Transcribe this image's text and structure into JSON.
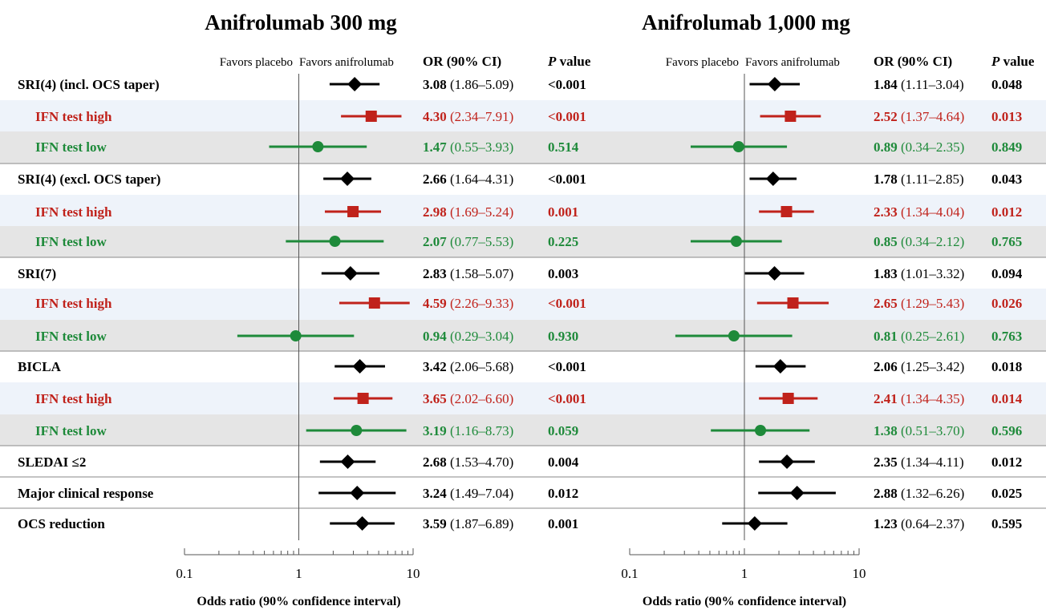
{
  "colors": {
    "main": "#000000",
    "high": "#c0221b",
    "low": "#1e8a3a",
    "band_high": "#eef3fa",
    "band_low": "#e5e5e5"
  },
  "headers": {
    "or_ci": "OR (90% CI)",
    "p_italic": "P",
    "p_rest": " value",
    "favors_placebo": "Favors placebo",
    "favors_anifrolumab": "Favors anifrolumab"
  },
  "chart_data": {
    "type": "forest",
    "scale": "log",
    "xlim": [
      0.1,
      10
    ],
    "xticks": [
      "0.1",
      "1",
      "10"
    ],
    "rows": [
      {
        "label": "SRI(4) (incl. OCS taper)",
        "kind": "main"
      },
      {
        "label": "IFN test high",
        "kind": "high"
      },
      {
        "label": "IFN test low",
        "kind": "low"
      },
      {
        "label": "SRI(4) (excl. OCS taper)",
        "kind": "main"
      },
      {
        "label": "IFN test high",
        "kind": "high"
      },
      {
        "label": "IFN test low",
        "kind": "low"
      },
      {
        "label": "SRI(7)",
        "kind": "main"
      },
      {
        "label": "IFN test high",
        "kind": "high"
      },
      {
        "label": "IFN test low",
        "kind": "low"
      },
      {
        "label": "BICLA",
        "kind": "main"
      },
      {
        "label": "IFN test high",
        "kind": "high"
      },
      {
        "label": "IFN test low",
        "kind": "low"
      },
      {
        "label": "SLEDAI ≤2",
        "kind": "main"
      },
      {
        "label": "Major clinical response",
        "kind": "main"
      },
      {
        "label": "OCS reduction",
        "kind": "main"
      }
    ],
    "panels": [
      {
        "title": "Anifrolumab 300 mg",
        "xlabel": "Odds ratio (90% confidence interval)",
        "data": [
          {
            "or": 3.08,
            "lo": 1.86,
            "hi": 5.09,
            "or_text": "3.08",
            "ci_text": "(1.86–5.09)",
            "p": "<0.001"
          },
          {
            "or": 4.3,
            "lo": 2.34,
            "hi": 7.91,
            "or_text": "4.30",
            "ci_text": "(2.34–7.91)",
            "p": "<0.001"
          },
          {
            "or": 1.47,
            "lo": 0.55,
            "hi": 3.93,
            "or_text": "1.47",
            "ci_text": "(0.55–3.93)",
            "p": "0.514"
          },
          {
            "or": 2.66,
            "lo": 1.64,
            "hi": 4.31,
            "or_text": "2.66",
            "ci_text": "(1.64–4.31)",
            "p": "<0.001"
          },
          {
            "or": 2.98,
            "lo": 1.69,
            "hi": 5.24,
            "or_text": "2.98",
            "ci_text": "(1.69–5.24)",
            "p": "0.001"
          },
          {
            "or": 2.07,
            "lo": 0.77,
            "hi": 5.53,
            "or_text": "2.07",
            "ci_text": "(0.77–5.53)",
            "p": "0.225"
          },
          {
            "or": 2.83,
            "lo": 1.58,
            "hi": 5.07,
            "or_text": "2.83",
            "ci_text": "(1.58–5.07)",
            "p": "0.003"
          },
          {
            "or": 4.59,
            "lo": 2.26,
            "hi": 9.33,
            "or_text": "4.59",
            "ci_text": "(2.26–9.33)",
            "p": "<0.001"
          },
          {
            "or": 0.94,
            "lo": 0.29,
            "hi": 3.04,
            "or_text": "0.94",
            "ci_text": "(0.29–3.04)",
            "p": "0.930"
          },
          {
            "or": 3.42,
            "lo": 2.06,
            "hi": 5.68,
            "or_text": "3.42",
            "ci_text": "(2.06–5.68)",
            "p": "<0.001"
          },
          {
            "or": 3.65,
            "lo": 2.02,
            "hi": 6.6,
            "or_text": "3.65",
            "ci_text": "(2.02–6.60)",
            "p": "<0.001"
          },
          {
            "or": 3.19,
            "lo": 1.16,
            "hi": 8.73,
            "or_text": "3.19",
            "ci_text": "(1.16–8.73)",
            "p": "0.059"
          },
          {
            "or": 2.68,
            "lo": 1.53,
            "hi": 4.7,
            "or_text": "2.68",
            "ci_text": "(1.53–4.70)",
            "p": "0.004"
          },
          {
            "or": 3.24,
            "lo": 1.49,
            "hi": 7.04,
            "or_text": "3.24",
            "ci_text": "(1.49–7.04)",
            "p": "0.012"
          },
          {
            "or": 3.59,
            "lo": 1.87,
            "hi": 6.89,
            "or_text": "3.59",
            "ci_text": "(1.87–6.89)",
            "p": "0.001"
          }
        ]
      },
      {
        "title": "Anifrolumab 1,000 mg",
        "xlabel": "Odds ratio (90% confidence interval)",
        "data": [
          {
            "or": 1.84,
            "lo": 1.11,
            "hi": 3.04,
            "or_text": "1.84",
            "ci_text": "(1.11–3.04)",
            "p": "0.048"
          },
          {
            "or": 2.52,
            "lo": 1.37,
            "hi": 4.64,
            "or_text": "2.52",
            "ci_text": "(1.37–4.64)",
            "p": "0.013"
          },
          {
            "or": 0.89,
            "lo": 0.34,
            "hi": 2.35,
            "or_text": "0.89",
            "ci_text": "(0.34–2.35)",
            "p": "0.849"
          },
          {
            "or": 1.78,
            "lo": 1.11,
            "hi": 2.85,
            "or_text": "1.78",
            "ci_text": "(1.11–2.85)",
            "p": "0.043"
          },
          {
            "or": 2.33,
            "lo": 1.34,
            "hi": 4.04,
            "or_text": "2.33",
            "ci_text": "(1.34–4.04)",
            "p": "0.012"
          },
          {
            "or": 0.85,
            "lo": 0.34,
            "hi": 2.12,
            "or_text": "0.85",
            "ci_text": "(0.34–2.12)",
            "p": "0.765"
          },
          {
            "or": 1.83,
            "lo": 1.01,
            "hi": 3.32,
            "or_text": "1.83",
            "ci_text": "(1.01–3.32)",
            "p": "0.094"
          },
          {
            "or": 2.65,
            "lo": 1.29,
            "hi": 5.43,
            "or_text": "2.65",
            "ci_text": "(1.29–5.43)",
            "p": "0.026"
          },
          {
            "or": 0.81,
            "lo": 0.25,
            "hi": 2.61,
            "or_text": "0.81",
            "ci_text": "(0.25–2.61)",
            "p": "0.763"
          },
          {
            "or": 2.06,
            "lo": 1.25,
            "hi": 3.42,
            "or_text": "2.06",
            "ci_text": "(1.25–3.42)",
            "p": "0.018"
          },
          {
            "or": 2.41,
            "lo": 1.34,
            "hi": 4.35,
            "or_text": "2.41",
            "ci_text": "(1.34–4.35)",
            "p": "0.014"
          },
          {
            "or": 1.38,
            "lo": 0.51,
            "hi": 3.7,
            "or_text": "1.38",
            "ci_text": "(0.51–3.70)",
            "p": "0.596"
          },
          {
            "or": 2.35,
            "lo": 1.34,
            "hi": 4.11,
            "or_text": "2.35",
            "ci_text": "(1.34–4.11)",
            "p": "0.012"
          },
          {
            "or": 2.88,
            "lo": 1.32,
            "hi": 6.26,
            "or_text": "2.88",
            "ci_text": "(1.32–6.26)",
            "p": "0.025"
          },
          {
            "or": 1.23,
            "lo": 0.64,
            "hi": 2.37,
            "or_text": "1.23",
            "ci_text": "(0.64–2.37)",
            "p": "0.595"
          }
        ]
      }
    ]
  }
}
